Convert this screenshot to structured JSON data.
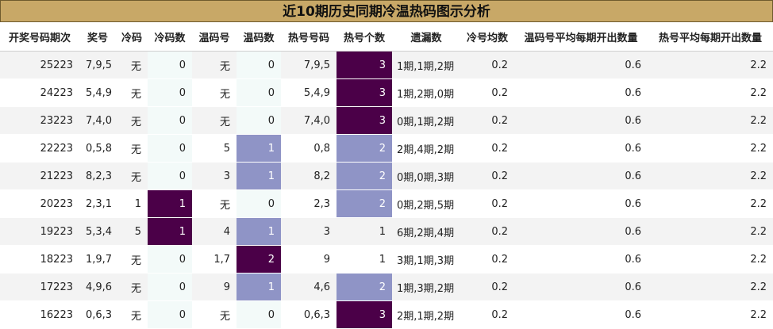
{
  "title": "近10期历史同期冷温热码图示分析",
  "colors": {
    "title_bg": "#c8a867",
    "dark": "#4b0048",
    "light": "#8f94c6",
    "cool_bg": "#f3faf9"
  },
  "headers": [
    "开奖号码期次",
    "奖号",
    "冷码",
    "冷码数",
    "温码号",
    "温码数",
    "热号号码",
    "热号个数",
    "遗漏数",
    "冷号均数",
    "温码号平均每期开出数量",
    "热号平均每期开出数量"
  ],
  "rows": [
    [
      "25223",
      "7,9,5",
      "无",
      "0",
      "无",
      "0",
      "7,9,5",
      "3",
      "1期,1期,2期",
      "0.2",
      "0.6",
      "2.2"
    ],
    [
      "24223",
      "5,4,9",
      "无",
      "0",
      "无",
      "0",
      "5,4,9",
      "3",
      "1期,2期,0期",
      "0.2",
      "0.6",
      "2.2"
    ],
    [
      "23223",
      "7,4,0",
      "无",
      "0",
      "无",
      "0",
      "7,4,0",
      "3",
      "0期,1期,2期",
      "0.2",
      "0.6",
      "2.2"
    ],
    [
      "22223",
      "0,5,8",
      "无",
      "0",
      "5",
      "1",
      "0,8",
      "2",
      "2期,4期,2期",
      "0.2",
      "0.6",
      "2.2"
    ],
    [
      "21223",
      "8,2,3",
      "无",
      "0",
      "3",
      "1",
      "8,2",
      "2",
      "0期,0期,3期",
      "0.2",
      "0.6",
      "2.2"
    ],
    [
      "20223",
      "2,3,1",
      "1",
      "1",
      "无",
      "0",
      "2,3",
      "2",
      "0期,2期,5期",
      "0.2",
      "0.6",
      "2.2"
    ],
    [
      "19223",
      "5,3,4",
      "5",
      "1",
      "4",
      "1",
      "3",
      "1",
      "6期,2期,4期",
      "0.2",
      "0.6",
      "2.2"
    ],
    [
      "18223",
      "1,9,7",
      "无",
      "0",
      "1,7",
      "2",
      "9",
      "1",
      "3期,1期,3期",
      "0.2",
      "0.6",
      "2.2"
    ],
    [
      "17223",
      "4,9,6",
      "无",
      "0",
      "9",
      "1",
      "4,6",
      "2",
      "1期,3期,2期",
      "0.2",
      "0.6",
      "2.2"
    ],
    [
      "16223",
      "0,6,3",
      "无",
      "0",
      "无",
      "0",
      "0,6,3",
      "3",
      "2期,1期,2期",
      "0.2",
      "0.6",
      "2.2"
    ]
  ]
}
